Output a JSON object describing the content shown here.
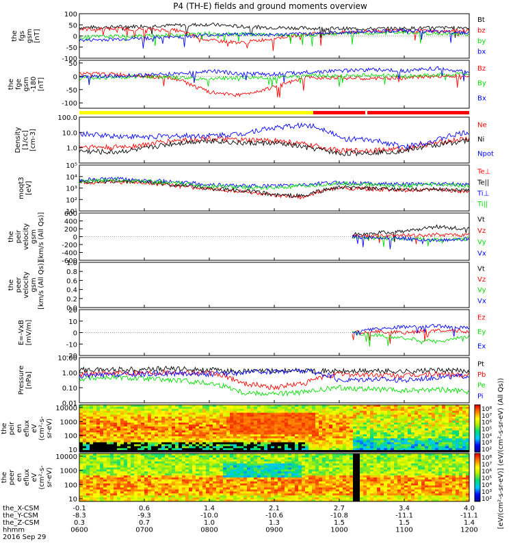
{
  "title": "P4 (TH-E) fields and ground moments overview",
  "colors": {
    "black": "#000000",
    "red": "#ff0000",
    "green": "#00dd00",
    "blue": "#0000ff",
    "yellow": "#ffff00"
  },
  "chart_data": [
    {
      "type": "line",
      "id": "fgs",
      "ylabel": [
        "the",
        "fgs",
        "gsm",
        "[nT]"
      ],
      "ylim": [
        -100,
        100
      ],
      "yticks": [
        "100",
        "50",
        "0",
        "-50",
        "-100"
      ],
      "yticks_values": [
        100,
        50,
        0,
        -50,
        -100
      ],
      "legend": [
        {
          "name": "Bt",
          "color": "#000000"
        },
        {
          "name": "bz",
          "color": "#ff0000"
        },
        {
          "name": "by",
          "color": "#00dd00"
        },
        {
          "name": "bx",
          "color": "#0000ff"
        }
      ],
      "series_x": [
        0,
        0.5,
        1,
        1.5,
        2,
        2.5,
        3,
        3.5,
        4,
        4.5,
        5,
        5.5,
        6
      ],
      "series": [
        {
          "name": "Bt",
          "values": [
            38,
            40,
            45,
            48,
            52,
            42,
            38,
            35,
            33,
            32,
            34,
            36,
            38
          ]
        },
        {
          "name": "bz",
          "values": [
            30,
            32,
            30,
            25,
            -20,
            -30,
            -10,
            10,
            15,
            22,
            25,
            20,
            25
          ]
        },
        {
          "name": "by",
          "values": [
            -5,
            -2,
            0,
            5,
            12,
            10,
            5,
            5,
            10,
            12,
            15,
            10,
            8
          ]
        },
        {
          "name": "bx",
          "values": [
            -20,
            -15,
            -10,
            -5,
            5,
            8,
            5,
            10,
            15,
            20,
            25,
            20,
            15
          ]
        }
      ]
    },
    {
      "type": "line",
      "id": "fge",
      "ylabel": [
        "the",
        "fge",
        "gsm",
        "-180",
        "[nT]"
      ],
      "ylim": [
        -120,
        60
      ],
      "yticks": [
        "50",
        "0",
        "-50",
        "-100"
      ],
      "yticks_values": [
        50,
        0,
        -50,
        -100
      ],
      "legend": [
        {
          "name": "Bz",
          "color": "#ff0000"
        },
        {
          "name": "By",
          "color": "#00dd00"
        },
        {
          "name": "Bx",
          "color": "#0000ff"
        }
      ],
      "series_x": [
        0,
        0.5,
        1,
        1.5,
        2,
        2.5,
        3,
        3.5,
        4,
        4.5,
        5,
        5.5,
        6
      ],
      "series": [
        {
          "name": "Bz",
          "values": [
            10,
            8,
            2,
            -10,
            -60,
            -70,
            -40,
            -5,
            -5,
            -10,
            -5,
            0,
            5
          ]
        },
        {
          "name": "By",
          "values": [
            -5,
            -5,
            0,
            -5,
            -10,
            -5,
            -5,
            5,
            0,
            5,
            0,
            5,
            10
          ]
        },
        {
          "name": "Bx",
          "values": [
            0,
            0,
            5,
            10,
            20,
            10,
            8,
            15,
            20,
            25,
            20,
            30,
            15
          ]
        }
      ]
    },
    {
      "type": "line",
      "id": "density",
      "log": true,
      "ylabel": [
        "Density",
        "[1/cc]",
        "[cm-3]"
      ],
      "ylim": [
        0.1,
        100
      ],
      "yticks": [
        "100.0",
        "10.0",
        "1.0"
      ],
      "yticks_values": [
        100,
        10,
        1
      ],
      "legend": [
        {
          "name": "Ne",
          "color": "#ff0000"
        },
        {
          "name": "Ni",
          "color": "#000000"
        },
        {
          "name": "Npot",
          "color": "#0000ff"
        }
      ],
      "series_x": [
        0,
        0.5,
        1,
        1.5,
        2,
        2.5,
        3,
        3.5,
        4,
        4.5,
        5,
        5.5,
        6
      ],
      "series": [
        {
          "name": "Ne",
          "values": [
            1.2,
            1.0,
            1.5,
            3,
            4,
            3,
            3,
            1.5,
            0.6,
            0.7,
            0.8,
            2,
            4
          ]
        },
        {
          "name": "Ni",
          "values": [
            0.6,
            0.5,
            0.8,
            2,
            3,
            2,
            2,
            1,
            0.4,
            0.5,
            0.6,
            1.5,
            3
          ]
        },
        {
          "name": "Npot",
          "values": [
            8,
            6,
            5,
            6,
            6,
            8,
            20,
            30,
            4,
            3,
            1,
            3,
            10
          ]
        }
      ]
    },
    {
      "type": "line",
      "id": "temp",
      "log": true,
      "ylabel": [
        "moqt3",
        "[eV]"
      ],
      "ylim": [
        10,
        100000
      ],
      "yticks": [
        "10⁵",
        "10⁴",
        "10³",
        "10²",
        "10¹"
      ],
      "yticks_values": [
        100000,
        10000,
        1000,
        100,
        10
      ],
      "legend": [
        {
          "name": "Te⊥",
          "color": "#ff0000"
        },
        {
          "name": "Te||",
          "color": "#000000"
        },
        {
          "name": "Ti⊥",
          "color": "#0000ff"
        },
        {
          "name": "Ti||",
          "color": "#00dd00"
        }
      ],
      "series_x": [
        0,
        0.5,
        1,
        1.5,
        2,
        2.5,
        3,
        3.5,
        4,
        4.5,
        5,
        5.5,
        6
      ],
      "series": [
        {
          "name": "Te⊥",
          "values": [
            3000,
            3500,
            3000,
            1500,
            800,
            500,
            200,
            150,
            1000,
            800,
            600,
            700,
            500
          ]
        },
        {
          "name": "Te||",
          "values": [
            3500,
            4000,
            3500,
            1800,
            900,
            600,
            250,
            200,
            1100,
            900,
            700,
            800,
            600
          ]
        },
        {
          "name": "Ti⊥",
          "values": [
            5000,
            6000,
            5000,
            3000,
            2000,
            1500,
            1500,
            2000,
            3000,
            2500,
            2000,
            2500,
            2000
          ]
        },
        {
          "name": "Ti||",
          "values": [
            4000,
            5000,
            4000,
            2500,
            1500,
            1200,
            1000,
            1500,
            2500,
            2000,
            1500,
            2000,
            1500
          ]
        }
      ]
    },
    {
      "type": "line",
      "id": "peir_vel",
      "ylabel": [
        "the",
        "peir",
        "velocity",
        "gsm",
        "[km/s (All Qs)]"
      ],
      "ylim": [
        -600,
        600
      ],
      "yticks": [
        "600",
        "400",
        "200",
        "0",
        "-200",
        "-400",
        "-600"
      ],
      "yticks_values": [
        600,
        400,
        200,
        0,
        -200,
        -400,
        -600
      ],
      "legend": [
        {
          "name": "Vt",
          "color": "#000000"
        },
        {
          "name": "Vz",
          "color": "#ff0000"
        },
        {
          "name": "Vy",
          "color": "#00dd00"
        },
        {
          "name": "Vx",
          "color": "#0000ff"
        }
      ],
      "series_x": [
        4.2,
        4.5,
        5,
        5.5,
        6
      ],
      "series": [
        {
          "name": "Vt",
          "values": [
            60,
            80,
            150,
            250,
            200
          ]
        },
        {
          "name": "Vz",
          "values": [
            20,
            10,
            30,
            50,
            40
          ]
        },
        {
          "name": "Vy",
          "values": [
            -20,
            -30,
            -50,
            -80,
            -60
          ]
        },
        {
          "name": "Vx",
          "values": [
            0,
            -20,
            -40,
            -100,
            -60
          ]
        }
      ]
    },
    {
      "type": "line",
      "id": "peer_vel",
      "ylabel": [
        "the",
        "peer",
        "velocity",
        "gsm",
        "[km/s (All Qs)]"
      ],
      "ylim": [
        0,
        1
      ],
      "yticks": [
        "1.0",
        "0.8",
        "0.6",
        "0.4",
        "0.2",
        "0.0"
      ],
      "yticks_values": [
        1,
        0.8,
        0.6,
        0.4,
        0.2,
        0
      ],
      "legend": [
        {
          "name": "Vt",
          "color": "#000000"
        },
        {
          "name": "Vz",
          "color": "#ff0000"
        },
        {
          "name": "Vy",
          "color": "#00dd00"
        },
        {
          "name": "Vx",
          "color": "#0000ff"
        }
      ],
      "series_x": [],
      "series": []
    },
    {
      "type": "line",
      "id": "efield",
      "ylabel": [
        "E=-VxB",
        "[mV/m]"
      ],
      "ylim": [
        -20,
        20
      ],
      "yticks": [
        "20",
        "10",
        "0",
        "-10",
        "-20"
      ],
      "yticks_values": [
        20,
        10,
        0,
        -10,
        -20
      ],
      "legend": [
        {
          "name": "Ez",
          "color": "#ff0000"
        },
        {
          "name": "Ey",
          "color": "#00dd00"
        },
        {
          "name": "Ex",
          "color": "#0000ff"
        }
      ],
      "series_x": [
        4.2,
        4.5,
        5,
        5.5,
        6
      ],
      "series": [
        {
          "name": "Ez",
          "values": [
            0,
            1,
            0,
            2,
            1
          ]
        },
        {
          "name": "Ey",
          "values": [
            0,
            -2,
            -5,
            -8,
            -3
          ]
        },
        {
          "name": "Ex",
          "values": [
            0,
            3,
            5,
            6,
            4
          ]
        }
      ]
    },
    {
      "type": "line",
      "id": "pressure",
      "log": true,
      "ylabel": [
        "Pressure",
        "[nPa]"
      ],
      "ylim": [
        0.01,
        10
      ],
      "yticks": [
        "10.00",
        "1.00",
        "0.10",
        "0.01"
      ],
      "yticks_values": [
        10,
        1,
        0.1,
        0.01
      ],
      "legend": [
        {
          "name": "Pt",
          "color": "#000000"
        },
        {
          "name": "Pb",
          "color": "#ff0000"
        },
        {
          "name": "Pe",
          "color": "#00dd00"
        },
        {
          "name": "Pi",
          "color": "#0000ff"
        }
      ],
      "series_x": [
        0,
        0.5,
        1,
        1.5,
        2,
        2.5,
        3,
        3.5,
        4,
        4.5,
        5,
        5.5,
        6
      ],
      "series": [
        {
          "name": "Pt",
          "values": [
            1.5,
            1.6,
            1.7,
            1.8,
            1.5,
            1.2,
            1.3,
            1.4,
            1.2,
            1.3,
            1.2,
            1.4,
            1.3
          ]
        },
        {
          "name": "Pb",
          "values": [
            0.8,
            0.9,
            1.0,
            1.1,
            0.9,
            0.2,
            0.1,
            0.2,
            0.8,
            0.7,
            0.6,
            0.8,
            0.7
          ]
        },
        {
          "name": "Pe",
          "values": [
            0.4,
            0.5,
            0.4,
            0.3,
            0.2,
            0.05,
            0.04,
            0.05,
            0.1,
            0.08,
            0.06,
            0.08,
            0.05
          ]
        },
        {
          "name": "Pi",
          "values": [
            0.6,
            0.7,
            0.8,
            0.9,
            0.8,
            1.0,
            1.2,
            1.3,
            0.3,
            0.4,
            0.3,
            0.5,
            0.6
          ]
        }
      ]
    },
    {
      "type": "heatmap",
      "id": "peir_spec",
      "ylabel": [
        "the",
        "peir",
        "en",
        "eflux",
        "eV",
        "(cm²-s-",
        "sr-eV)"
      ],
      "yticks": [
        "10000",
        "1000",
        "100",
        "10"
      ],
      "colorbar_ticks": [
        "10⁸",
        "10⁷",
        "10⁶",
        "10⁵",
        "10⁴",
        "10³",
        "10²"
      ]
    },
    {
      "type": "heatmap",
      "id": "peer_spec",
      "ylabel": [
        "the",
        "peer",
        "en",
        "eflux",
        "eV",
        "(cm²-s-",
        "sr-eV)"
      ],
      "yticks": [
        "10000",
        "1000",
        "100",
        "10"
      ],
      "colorbar_ticks": [
        "10⁸",
        "10⁷",
        "10⁶",
        "10⁵",
        "10⁴",
        "10³",
        "10²"
      ]
    }
  ],
  "colorbar_label": "[eV/(cm²-s-sr-eV)] (eV/(cm²-s-sr-eV) (All Qs))",
  "xaxis": {
    "rows": [
      {
        "label": "the_X-CSM",
        "values": [
          "-0.1",
          "0.6",
          "1.4",
          "2.1",
          "2.7",
          "3.4",
          "4.0"
        ]
      },
      {
        "label": "the_Y-CSM",
        "values": [
          "-8.3",
          "-9.3",
          "-10.0",
          "-10.6",
          "-10.8",
          "-11.1",
          "-11.1"
        ]
      },
      {
        "label": "the_Z-CSM",
        "values": [
          "0.3",
          "0.7",
          "1.0",
          "1.3",
          "1.5",
          "1.5",
          "1.4"
        ]
      },
      {
        "label": "hhmm",
        "values": [
          "0600",
          "0700",
          "0800",
          "0900",
          "1000",
          "1100",
          "1200"
        ]
      }
    ],
    "date": "2016 Sep 29"
  }
}
